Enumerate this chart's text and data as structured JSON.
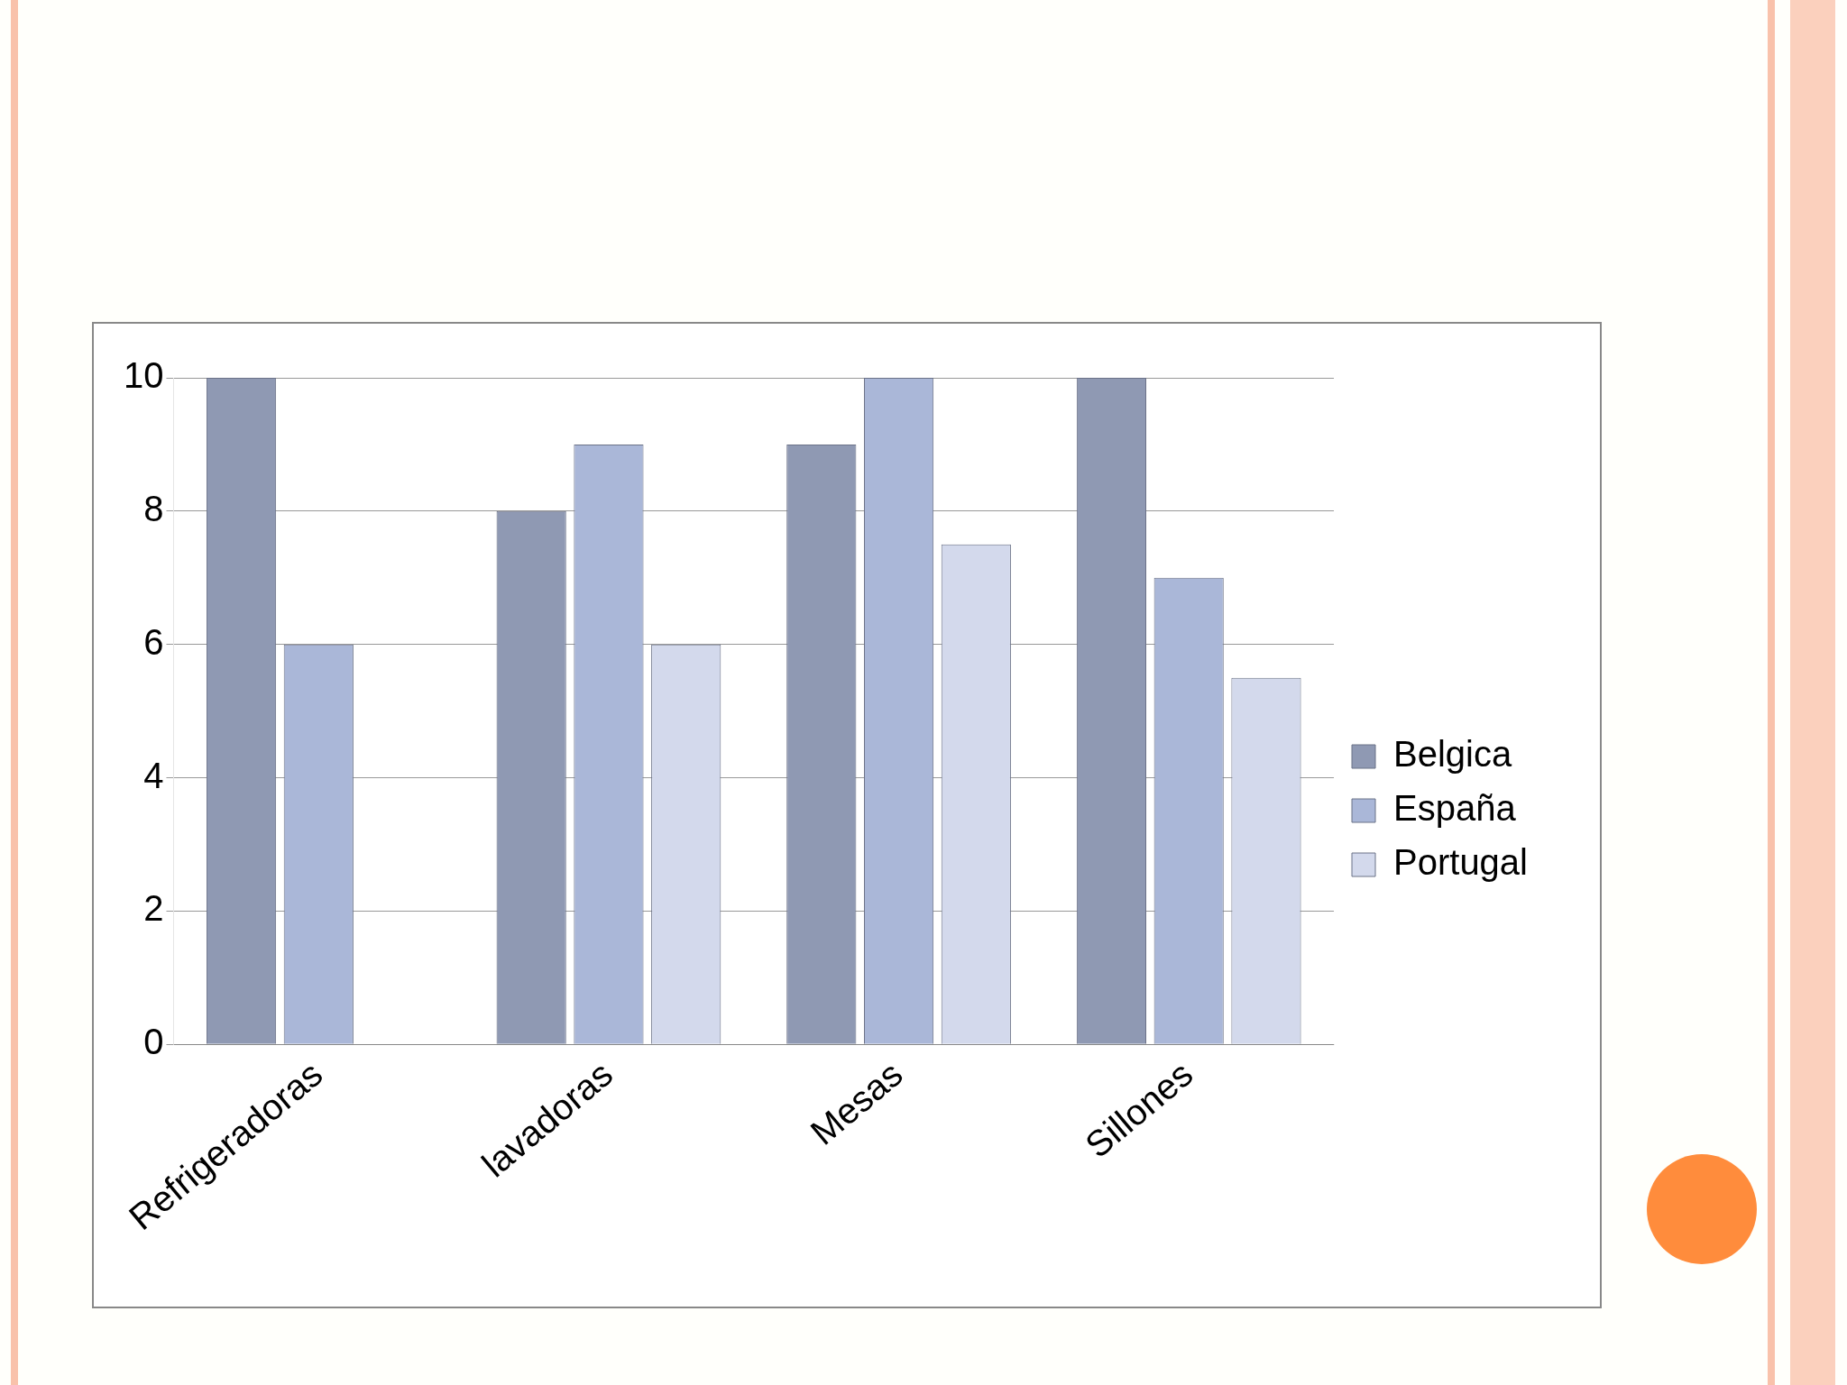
{
  "chart_data": {
    "type": "bar",
    "categories": [
      "Refrigeradoras",
      "lavadoras",
      "Mesas",
      "Sillones"
    ],
    "series": [
      {
        "name": "Belgica",
        "color": "#8f99b3",
        "values": [
          10,
          8,
          9,
          10
        ]
      },
      {
        "name": "España",
        "color": "#aab7d8",
        "values": [
          6,
          9,
          10,
          7
        ]
      },
      {
        "name": "Portugal",
        "color": "#d3d9ec",
        "values": [
          null,
          6,
          7.5,
          5.5
        ]
      }
    ],
    "ylim": [
      0,
      10
    ],
    "yticks": [
      0,
      2,
      4,
      6,
      8,
      10
    ],
    "grid": "y",
    "legend": "right"
  }
}
